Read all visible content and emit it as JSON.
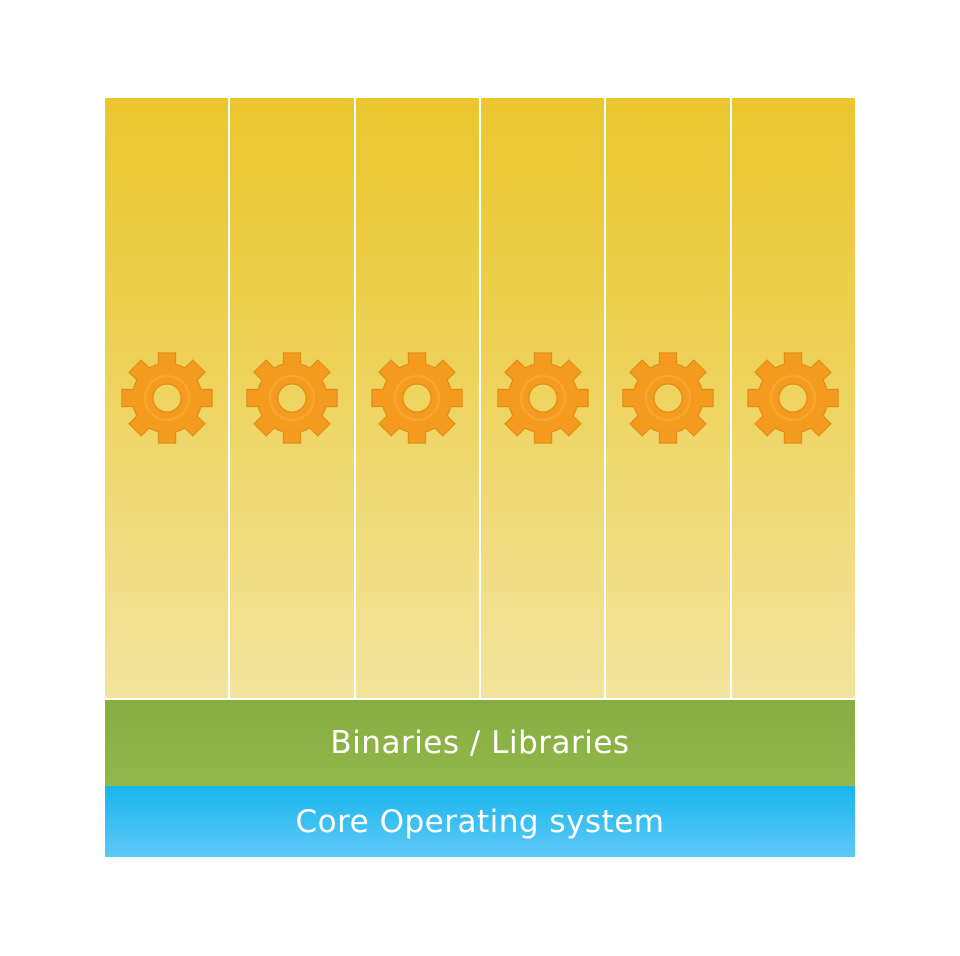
{
  "diagram": {
    "app_columns": [
      {
        "icon": "gear-icon"
      },
      {
        "icon": "gear-icon"
      },
      {
        "icon": "gear-icon"
      },
      {
        "icon": "gear-icon"
      },
      {
        "icon": "gear-icon"
      },
      {
        "icon": "gear-icon"
      }
    ],
    "layers": {
      "libraries": "Binaries / Libraries",
      "os": "Core Operating system"
    },
    "colors": {
      "app_top": "#ebc62e",
      "app_bottom": "#f3e49d",
      "gear": "#f39a1f",
      "libraries": "#8cb347",
      "os": "#29baf0",
      "text": "#ffffff"
    }
  }
}
